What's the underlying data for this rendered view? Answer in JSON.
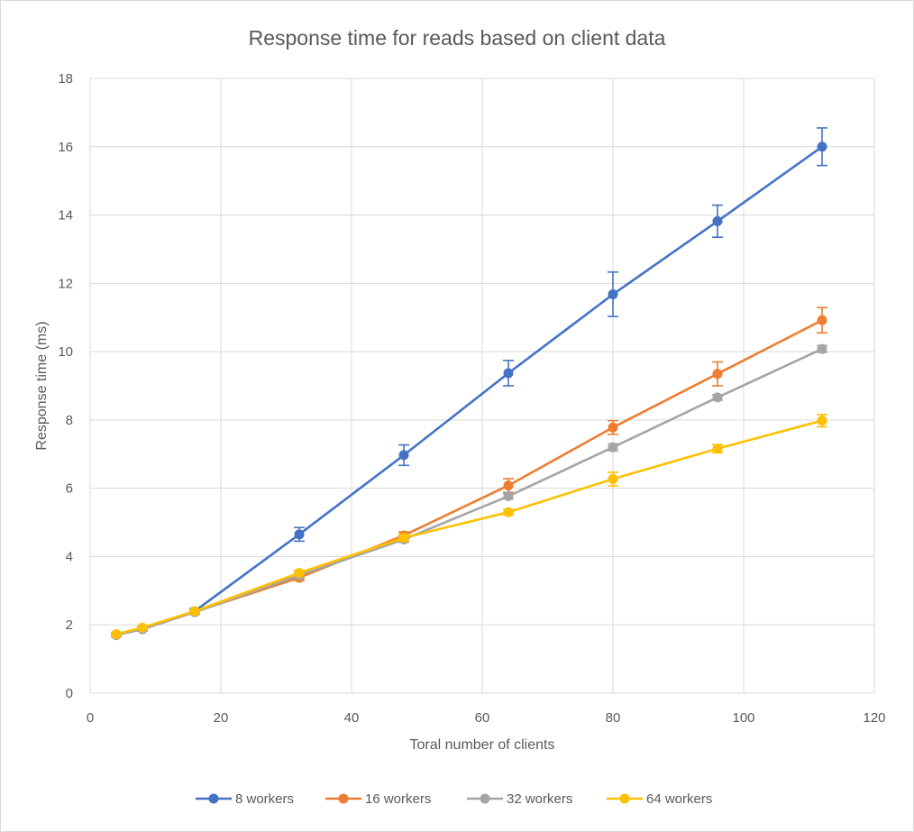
{
  "chart_data": {
    "type": "line",
    "title": "Response time for reads based on client data",
    "xlabel": "Toral number of clients",
    "ylabel": "Response time (ms)",
    "xlim": [
      0,
      120
    ],
    "ylim": [
      0,
      18
    ],
    "x_ticks": [
      0,
      20,
      40,
      60,
      80,
      100,
      120
    ],
    "y_ticks": [
      0,
      2,
      4,
      6,
      8,
      10,
      12,
      14,
      16,
      18
    ],
    "grid": true,
    "legend_position": "bottom",
    "x": [
      4,
      8,
      16,
      32,
      48,
      64,
      80,
      96,
      112
    ],
    "series": [
      {
        "name": "8 workers",
        "color": "#4472c4",
        "values": [
          1.72,
          1.88,
          2.4,
          4.65,
          6.97,
          9.37,
          11.68,
          13.82,
          16.0
        ],
        "errors": [
          0.05,
          0.05,
          0.08,
          0.2,
          0.3,
          0.37,
          0.65,
          0.47,
          0.55
        ]
      },
      {
        "name": "16 workers",
        "color": "#ed7d31",
        "values": [
          1.72,
          1.9,
          2.38,
          3.38,
          4.62,
          6.08,
          7.78,
          9.35,
          10.92
        ],
        "errors": [
          0.05,
          0.05,
          0.07,
          0.08,
          0.1,
          0.2,
          0.2,
          0.35,
          0.37
        ]
      },
      {
        "name": "32 workers",
        "color": "#a5a5a5",
        "values": [
          1.7,
          1.87,
          2.37,
          3.45,
          4.5,
          5.77,
          7.2,
          8.66,
          10.08
        ],
        "errors": [
          0.05,
          0.05,
          0.05,
          0.07,
          0.08,
          0.08,
          0.1,
          0.08,
          0.1
        ]
      },
      {
        "name": "64 workers",
        "color": "#ffc000",
        "values": [
          1.73,
          1.92,
          2.4,
          3.52,
          4.55,
          5.3,
          6.27,
          7.16,
          7.98
        ],
        "errors": [
          0.05,
          0.05,
          0.06,
          0.08,
          0.1,
          0.08,
          0.2,
          0.12,
          0.18
        ]
      }
    ]
  }
}
